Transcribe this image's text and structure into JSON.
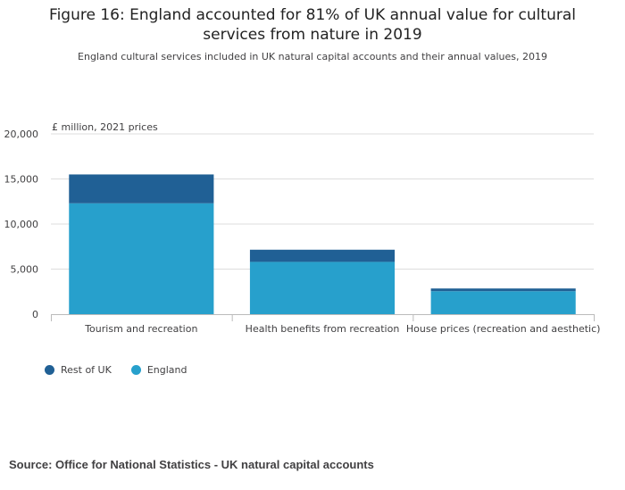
{
  "title_line1": "Figure 16: England accounted for 81% of UK annual value for cultural",
  "title_line2": "services from nature in 2019",
  "subtitle": "England cultural services included in UK natural capital accounts and their annual values, 2019",
  "source": "Source: Office for National Statistics - UK natural capital accounts",
  "chart_data": {
    "type": "bar",
    "stacked": true,
    "units_label": "£ million, 2021 prices",
    "categories": [
      "Tourism and recreation",
      "Health benefits from recreation",
      "House prices (recreation and aesthetic)"
    ],
    "series": [
      {
        "name": "England",
        "color": "#27a0cc",
        "values": [
          12300,
          5800,
          2550
        ]
      },
      {
        "name": "Rest of UK",
        "color": "#206095",
        "values": [
          3200,
          1350,
          300
        ]
      }
    ],
    "legend_order": [
      "Rest of UK",
      "England"
    ],
    "ylim": [
      0,
      20000
    ],
    "yticks": [
      0,
      5000,
      10000,
      15000,
      20000
    ],
    "ytick_labels": [
      "0",
      "5,000",
      "10,000",
      "15,000",
      "20,000"
    ],
    "grid": true,
    "legend_position": "bottom-left"
  }
}
